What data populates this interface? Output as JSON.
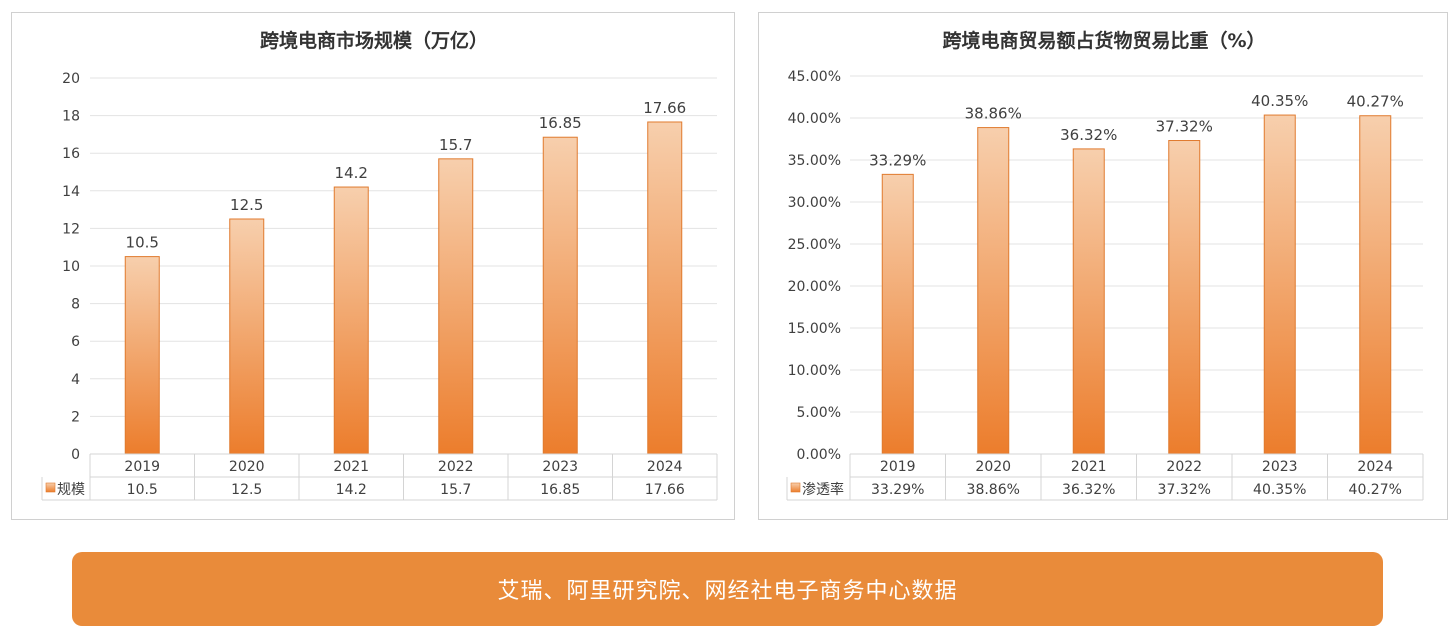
{
  "chart_data": [
    {
      "type": "bar",
      "title": "跨境电商市场规模（万亿）",
      "categories": [
        "2019",
        "2020",
        "2021",
        "2022",
        "2023",
        "2024"
      ],
      "series": [
        {
          "name": "规模",
          "values": [
            10.5,
            12.5,
            14.2,
            15.7,
            16.85,
            17.66
          ],
          "labels": [
            "10.5",
            "12.5",
            "14.2",
            "15.7",
            "16.85",
            "17.66"
          ]
        }
      ],
      "ylim": [
        0,
        20
      ],
      "yticks": [
        "0",
        "2",
        "4",
        "6",
        "8",
        "10",
        "12",
        "14",
        "16",
        "18",
        "20"
      ],
      "grid": true,
      "data_table": true
    },
    {
      "type": "bar",
      "title": "跨境电商贸易额占货物贸易比重（%）",
      "categories": [
        "2019",
        "2020",
        "2021",
        "2022",
        "2023",
        "2024"
      ],
      "series": [
        {
          "name": "渗透率",
          "values": [
            33.29,
            38.86,
            36.32,
            37.32,
            40.35,
            40.27
          ],
          "labels": [
            "33.29%",
            "38.86%",
            "36.32%",
            "37.32%",
            "40.35%",
            "40.27%"
          ]
        }
      ],
      "ylim": [
        0,
        45
      ],
      "yticks": [
        "0.00%",
        "5.00%",
        "10.00%",
        "15.00%",
        "20.00%",
        "25.00%",
        "30.00%",
        "35.00%",
        "40.00%",
        "45.00%"
      ],
      "grid": true,
      "data_table": true
    }
  ],
  "colors": {
    "bar_top": "#f7cfad",
    "bar_bottom": "#ec7d2c",
    "bar_stroke": "#e07a2e",
    "banner": "#e98b3a"
  },
  "footer": {
    "source": "艾瑞、阿里研究院、网经社电子商务中心数据"
  }
}
